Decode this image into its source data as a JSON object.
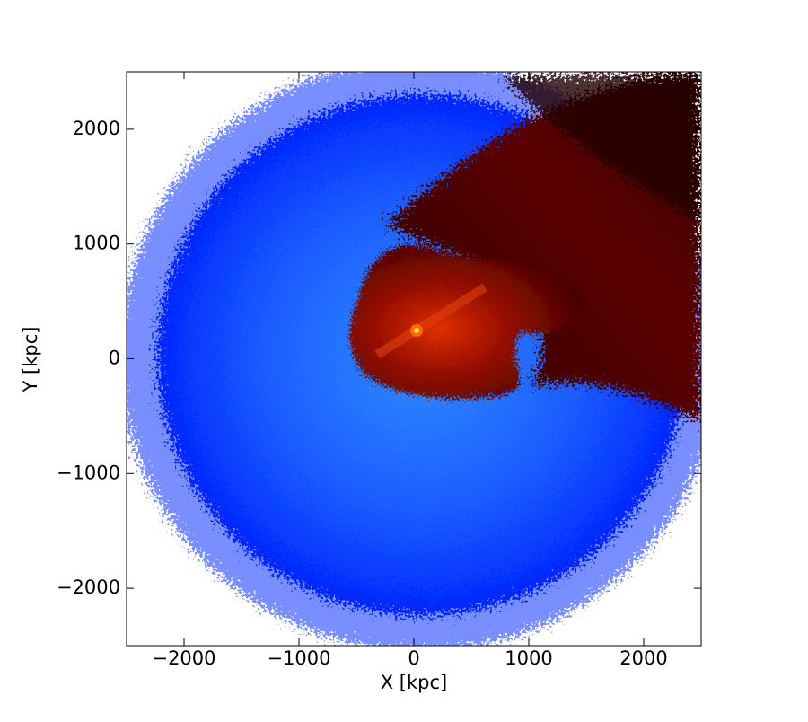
{
  "chart_data": {
    "type": "density-map",
    "xlabel": "X [kpc]",
    "ylabel": "Y [kpc]",
    "xlim": [
      -2500,
      2500
    ],
    "ylim": [
      -2500,
      2500
    ],
    "xticks": [
      {
        "value": -2000,
        "label": "−2000"
      },
      {
        "value": -1000,
        "label": "−1000"
      },
      0,
      1000,
      2000
    ],
    "yticks": [
      {
        "value": -2000,
        "label": "−2000"
      },
      {
        "value": -1000,
        "label": "−1000"
      },
      0,
      1000,
      2000
    ]
  }
}
